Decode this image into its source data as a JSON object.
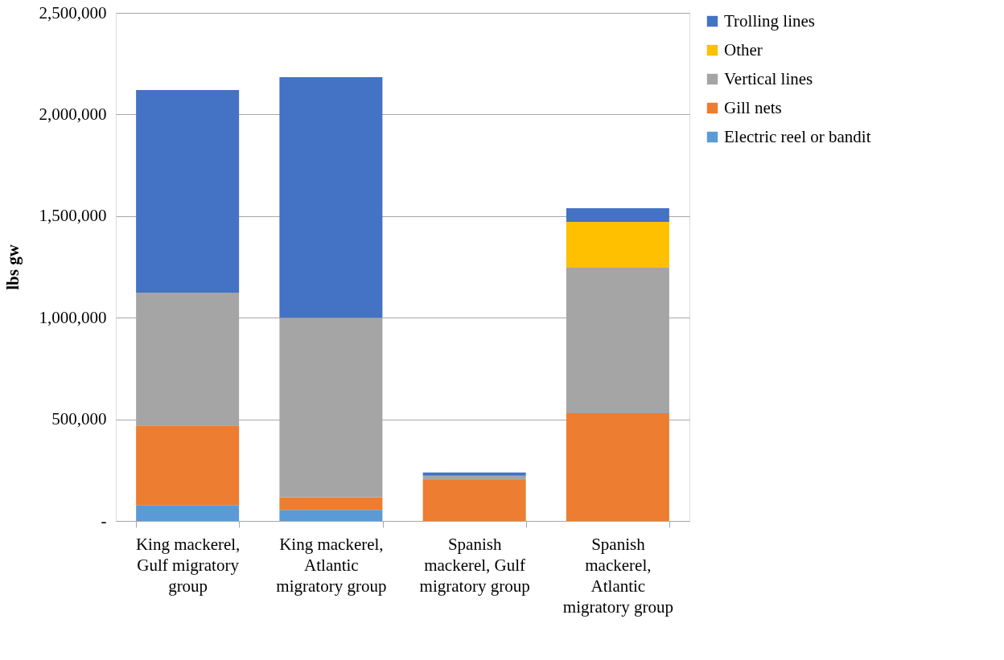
{
  "chart_data": {
    "type": "bar",
    "stacked": true,
    "ylabel": "lbs gw",
    "categories": [
      "King mackerel, Gulf migratory group",
      "King mackerel, Atlantic migratory group",
      "Spanish mackerel, Gulf migratory group",
      "Spanish mackerel, Atlantic migratory group"
    ],
    "series": [
      {
        "name": "Electric reel or bandit",
        "color": "#5b9bd5",
        "values": [
          78000,
          54000,
          0,
          0
        ]
      },
      {
        "name": "Gill nets",
        "color": "#ed7d31",
        "values": [
          392000,
          63000,
          202000,
          530000
        ]
      },
      {
        "name": "Vertical lines",
        "color": "#a5a5a5",
        "values": [
          653000,
          883000,
          21000,
          716000
        ]
      },
      {
        "name": "Other",
        "color": "#ffc000",
        "values": [
          0,
          0,
          0,
          226000
        ]
      },
      {
        "name": "Trolling lines",
        "color": "#4472c4",
        "values": [
          997000,
          1184000,
          15000,
          67000
        ]
      }
    ],
    "ylim": [
      0,
      2500000
    ],
    "yticks": [
      {
        "value": 0,
        "label": "-"
      },
      {
        "value": 500000,
        "label": "500,000"
      },
      {
        "value": 1000000,
        "label": "1,000,000"
      },
      {
        "value": 1500000,
        "label": "1,500,000"
      },
      {
        "value": 2000000,
        "label": "2,000,000"
      },
      {
        "value": 2500000,
        "label": "2,500,000"
      }
    ],
    "grid": "y",
    "legend": "right"
  }
}
